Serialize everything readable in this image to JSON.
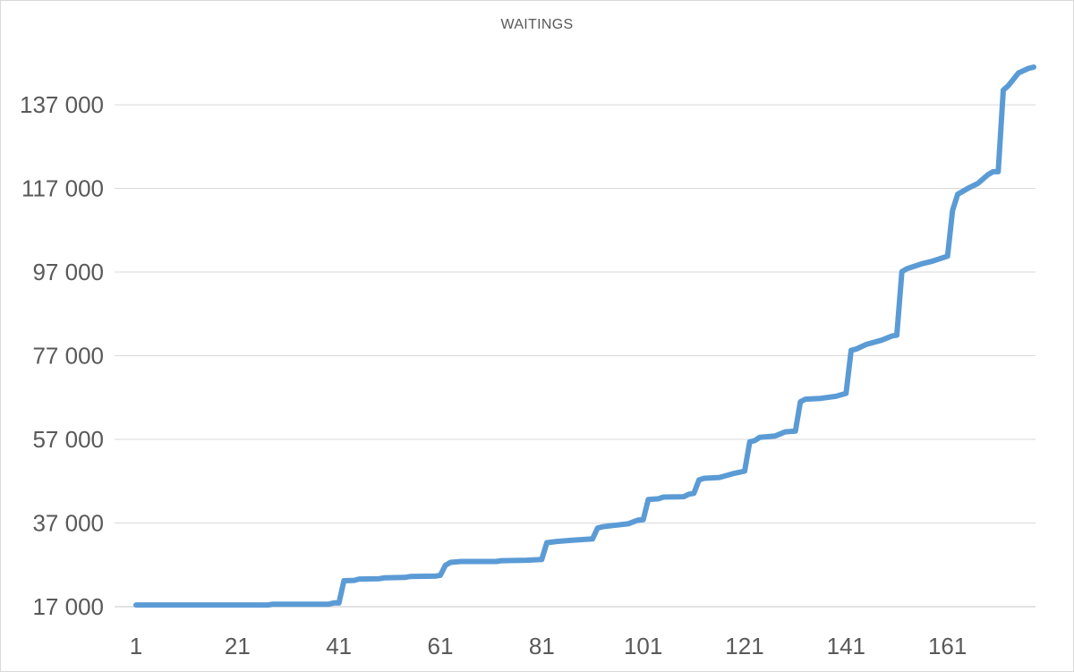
{
  "chart_data": {
    "type": "line",
    "title": "WAITINGS",
    "xlabel": "",
    "ylabel": "",
    "grid": true,
    "legend": "none",
    "ylim": [
      17000,
      146000
    ],
    "xlim": [
      1,
      178
    ],
    "yticks": [
      "17 000",
      "37 000",
      "57 000",
      "77 000",
      "97 000",
      "117 000",
      "137 000"
    ],
    "ytick_values": [
      17000,
      37000,
      57000,
      77000,
      97000,
      117000,
      137000
    ],
    "xticks": [
      "1",
      "21",
      "41",
      "61",
      "81",
      "101",
      "121",
      "141",
      "161"
    ],
    "xtick_values": [
      1,
      21,
      41,
      61,
      81,
      101,
      121,
      141,
      161
    ],
    "line_color": "#5b9bd5",
    "grid_color": "#d9d9d9",
    "series": [
      {
        "points": [
          [
            1,
            17400
          ],
          [
            27,
            17400
          ],
          [
            28,
            17600
          ],
          [
            39,
            17600
          ],
          [
            40,
            17900
          ],
          [
            41,
            17900
          ],
          [
            42,
            23200
          ],
          [
            44,
            23300
          ],
          [
            45,
            23600
          ],
          [
            49,
            23700
          ],
          [
            50,
            23900
          ],
          [
            54,
            24000
          ],
          [
            55,
            24200
          ],
          [
            60,
            24300
          ],
          [
            61,
            24500
          ],
          [
            62,
            26900
          ],
          [
            63,
            27600
          ],
          [
            65,
            27800
          ],
          [
            72,
            27800
          ],
          [
            73,
            28000
          ],
          [
            78,
            28100
          ],
          [
            81,
            28300
          ],
          [
            82,
            32300
          ],
          [
            84,
            32600
          ],
          [
            87,
            32900
          ],
          [
            91,
            33200
          ],
          [
            92,
            35800
          ],
          [
            93,
            36100
          ],
          [
            95,
            36400
          ],
          [
            98,
            36800
          ],
          [
            100,
            37700
          ],
          [
            101,
            37800
          ],
          [
            102,
            42600
          ],
          [
            104,
            42800
          ],
          [
            105,
            43200
          ],
          [
            109,
            43300
          ],
          [
            110,
            43900
          ],
          [
            111,
            44100
          ],
          [
            112,
            47300
          ],
          [
            113,
            47700
          ],
          [
            116,
            47900
          ],
          [
            119,
            48900
          ],
          [
            121,
            49400
          ],
          [
            122,
            56400
          ],
          [
            123,
            56700
          ],
          [
            124,
            57500
          ],
          [
            127,
            57800
          ],
          [
            129,
            58800
          ],
          [
            131,
            59000
          ],
          [
            132,
            66000
          ],
          [
            133,
            66600
          ],
          [
            136,
            66800
          ],
          [
            139,
            67300
          ],
          [
            141,
            68000
          ],
          [
            142,
            78300
          ],
          [
            143,
            78600
          ],
          [
            145,
            79700
          ],
          [
            148,
            80700
          ],
          [
            150,
            81700
          ],
          [
            151,
            81900
          ],
          [
            152,
            97100
          ],
          [
            153,
            97800
          ],
          [
            156,
            99000
          ],
          [
            158,
            99600
          ],
          [
            161,
            100800
          ],
          [
            162,
            111700
          ],
          [
            163,
            115600
          ],
          [
            165,
            117000
          ],
          [
            167,
            118200
          ],
          [
            169,
            120300
          ],
          [
            170,
            121000
          ],
          [
            171,
            121000
          ],
          [
            172,
            140500
          ],
          [
            173,
            141600
          ],
          [
            175,
            144600
          ],
          [
            177,
            145700
          ],
          [
            178,
            146000
          ]
        ]
      }
    ]
  }
}
